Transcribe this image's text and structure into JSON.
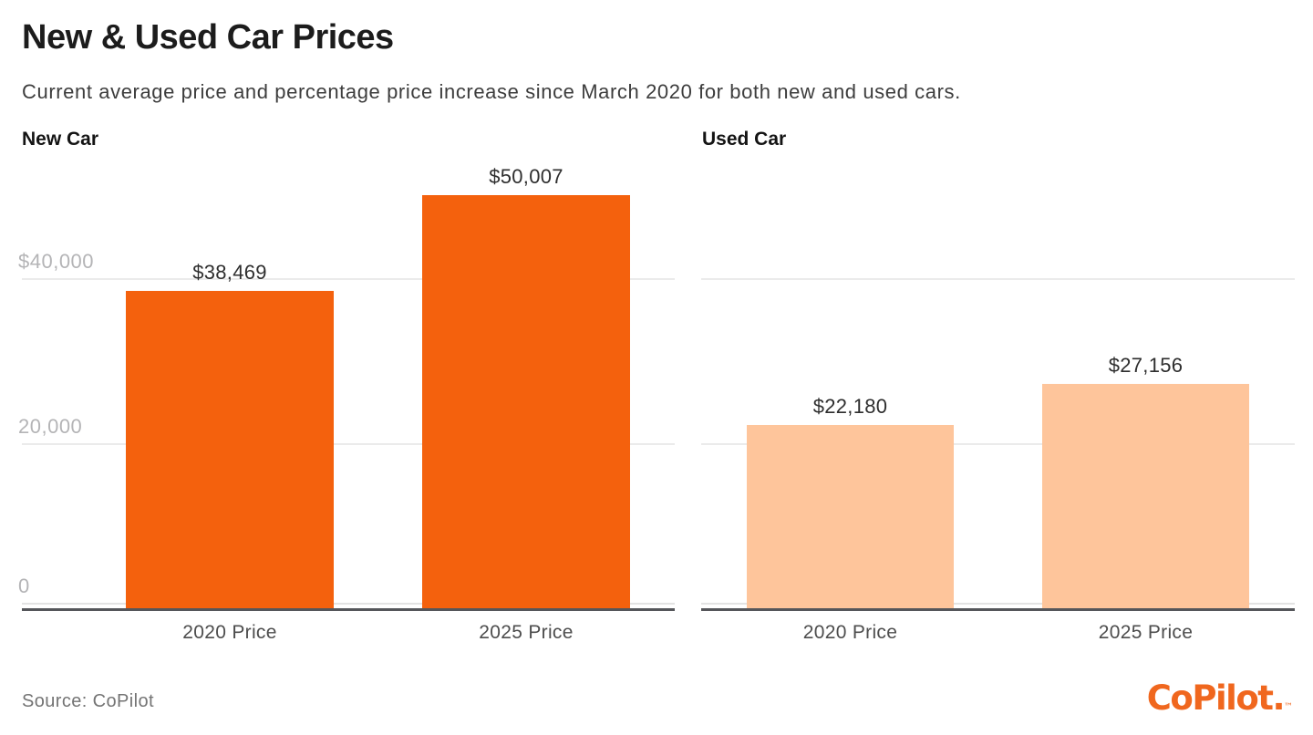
{
  "header": {
    "title": "New & Used Car Prices",
    "subtitle": "Current average price and percentage price increase since March 2020 for both new and used cars."
  },
  "footer": {
    "source": "Source: CoPilot",
    "logo_text": "CoPilot.",
    "logo_tm": "™"
  },
  "colors": {
    "new_car_bar": "#F4610D",
    "used_car_bar": "#FEC59B",
    "axis": "#55565A",
    "gridline": "#EBEBEB",
    "tick_label": "#B4B4B6",
    "value_label": "#2E2E2E",
    "brand_orange": "#F0671E"
  },
  "chart_data": [
    {
      "type": "bar",
      "title": "New Car",
      "categories": [
        "2020 Price",
        "2025 Price"
      ],
      "values": [
        38469,
        50007
      ],
      "value_labels": [
        "$38,469",
        "$50,007"
      ],
      "bar_color": "#F4610D",
      "ylim": [
        0,
        54000
      ],
      "grid": true,
      "legend": "none",
      "y_ticks": [
        {
          "value": 40000,
          "label": "$40,000"
        },
        {
          "value": 20000,
          "label": "20,000"
        },
        {
          "value": 0,
          "label": "0"
        }
      ]
    },
    {
      "type": "bar",
      "title": "Used Car",
      "categories": [
        "2020 Price",
        "2025 Price"
      ],
      "values": [
        22180,
        27156
      ],
      "value_labels": [
        "$22,180",
        "$27,156"
      ],
      "bar_color": "#FEC59B",
      "ylim": [
        0,
        54000
      ],
      "grid": true,
      "legend": "none",
      "y_ticks": [
        {
          "value": 40000,
          "label": ""
        },
        {
          "value": 20000,
          "label": ""
        },
        {
          "value": 0,
          "label": ""
        }
      ]
    }
  ]
}
